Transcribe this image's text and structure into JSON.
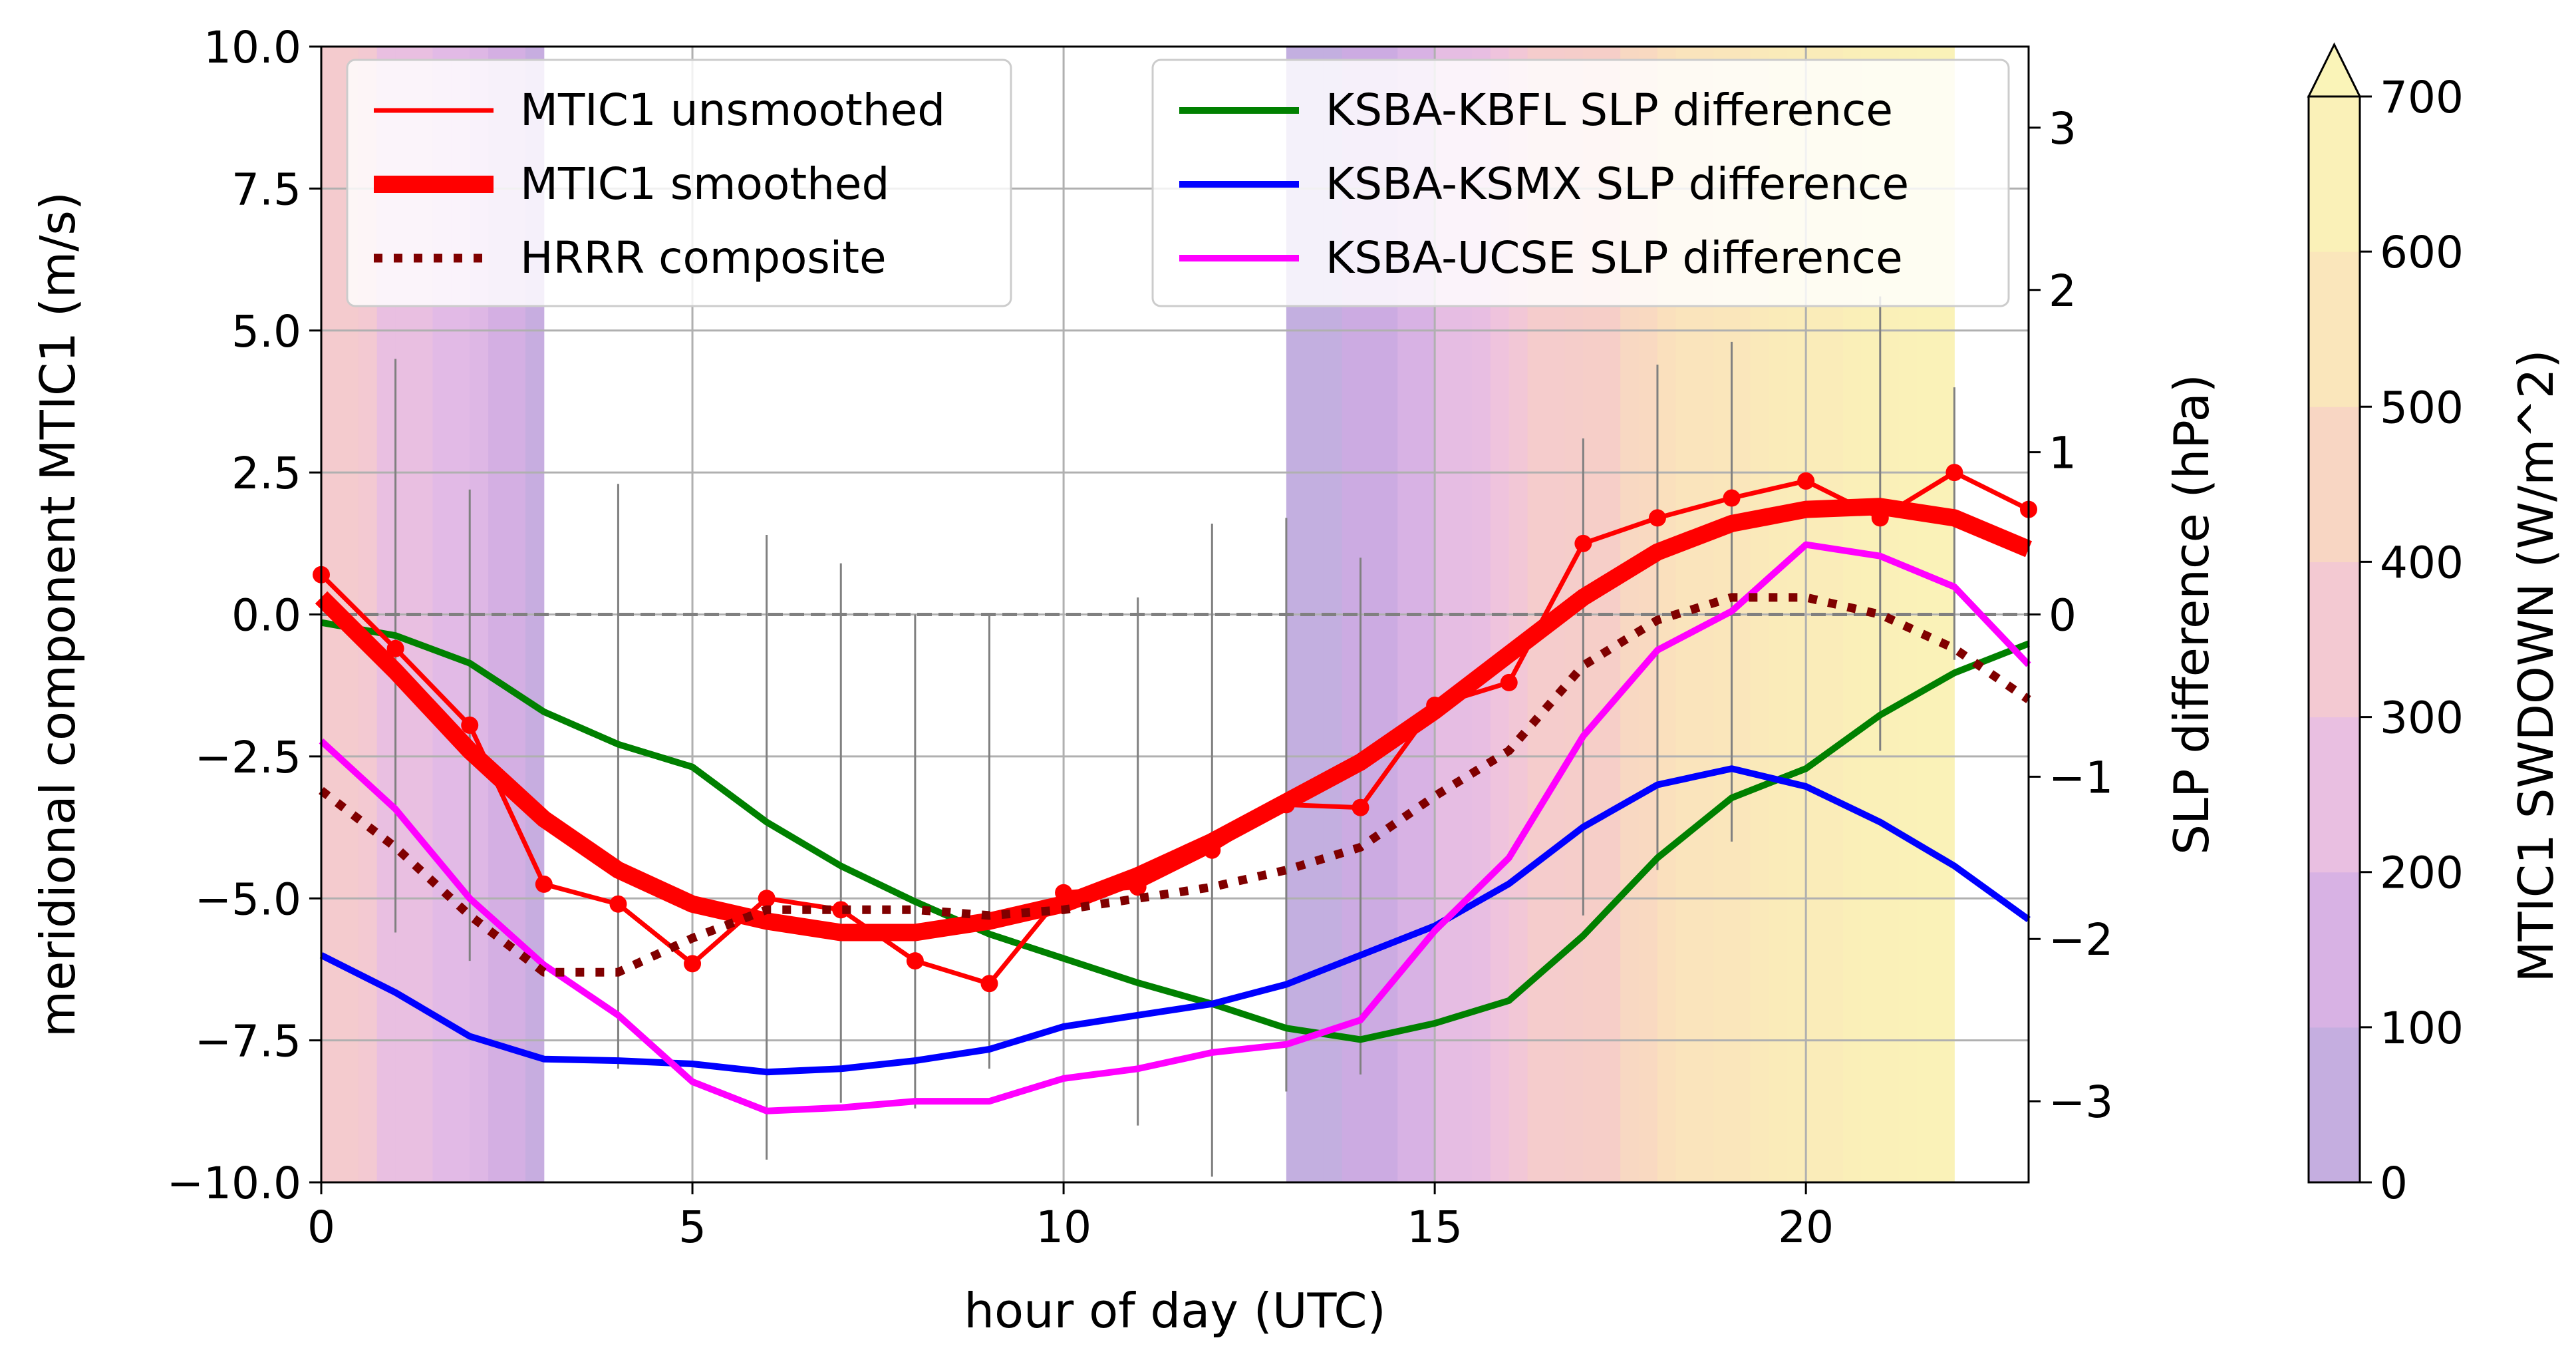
{
  "chart_data": {
    "type": "line",
    "xlabel": "hour of day (UTC)",
    "ylabel_left": "meridional component MTIC1 (m/s)",
    "ylabel_right": "SLP difference (hPa)",
    "colorbar_label": "MTIC1 SWDOWN (W/m^2)",
    "xlim": [
      0,
      23
    ],
    "ylim_left": [
      -10,
      10
    ],
    "ylim_right": [
      -3.5,
      3.5
    ],
    "x_ticks": [
      0,
      5,
      10,
      15,
      20
    ],
    "y_ticks_left": [
      10.0,
      7.5,
      5.0,
      2.5,
      0.0,
      -2.5,
      -5.0,
      -7.5,
      -10.0
    ],
    "y_ticks_right": [
      3,
      2,
      1,
      0,
      -1,
      -2,
      -3
    ],
    "colorbar_ticks": [
      0,
      100,
      200,
      300,
      400,
      500,
      600,
      700
    ],
    "x_tick_labels": [
      "0",
      "5",
      "10",
      "15",
      "20"
    ],
    "y_tick_labels_left": [
      "10.0",
      "7.5",
      "5.0",
      "2.5",
      "0.0",
      "−2.5",
      "−5.0",
      "−7.5",
      "−10.0"
    ],
    "y_tick_labels_right": [
      "3",
      "2",
      "1",
      "0",
      "−1",
      "−2",
      "−3"
    ],
    "colorbar_tick_labels": [
      "0",
      "100",
      "200",
      "300",
      "400",
      "500",
      "600",
      "700"
    ],
    "colorbar_extend": "max",
    "zero_line": 0,
    "background_swdown": {
      "start_hour": 0,
      "step_hours": 0.25,
      "values": [
        370,
        370,
        350,
        250,
        250,
        250,
        200,
        200,
        180,
        130,
        130,
        60,
        null,
        null,
        null,
        null,
        null,
        null,
        null,
        null,
        null,
        null,
        null,
        null,
        null,
        null,
        null,
        null,
        null,
        null,
        null,
        null,
        null,
        null,
        null,
        null,
        null,
        null,
        null,
        null,
        null,
        null,
        null,
        null,
        null,
        null,
        null,
        null,
        null,
        null,
        null,
        null,
        40,
        40,
        40,
        90,
        90,
        90,
        150,
        150,
        230,
        230,
        240,
        290,
        330,
        380,
        380,
        390,
        400,
        400,
        460,
        470,
        510,
        540,
        540,
        550,
        550,
        570,
        580,
        590,
        590,
        590,
        610,
        640,
        640,
        650,
        660,
        670
      ]
    },
    "series": [
      {
        "name": "MTIC1 unsmoothed",
        "axis": "left",
        "color": "#ff0000",
        "style": "solid-markers",
        "x": [
          0,
          1,
          2,
          3,
          4,
          5,
          6,
          7,
          8,
          9,
          10,
          11,
          12,
          13,
          14,
          15,
          16,
          17,
          18,
          19,
          20,
          21,
          22,
          23
        ],
        "y": [
          0.7,
          -0.6,
          -1.95,
          -4.75,
          -5.1,
          -6.15,
          -5.0,
          -5.2,
          -6.1,
          -6.5,
          -4.9,
          -4.8,
          -4.15,
          -3.35,
          -3.4,
          -1.6,
          -1.2,
          1.25,
          1.7,
          2.05,
          2.35,
          1.7,
          2.5,
          1.85
        ],
        "error_bars": [
          [
            0.7,
            0.7
          ],
          [
            -0.6,
            -0.6
          ],
          [
            -6.1,
            2.2
          ],
          [
            -4.75,
            -4.75
          ],
          [
            -8.0,
            2.3
          ],
          [
            -6.15,
            -6.15
          ],
          [
            -9.6,
            1.4
          ],
          [
            -8.6,
            0.9
          ],
          [
            -8.7,
            0.0
          ],
          [
            -8.0,
            0.0
          ],
          [
            -4.9,
            -4.9
          ],
          [
            -9.0,
            0.3
          ],
          [
            -9.9,
            1.6
          ],
          [
            -8.4,
            1.7
          ],
          [
            -8.1,
            1.0
          ],
          [
            -1.6,
            -1.6
          ],
          [
            -1.2,
            -1.2
          ],
          [
            -5.3,
            3.1
          ],
          [
            -4.5,
            4.4
          ],
          [
            -4.0,
            4.8
          ],
          [
            2.35,
            2.35
          ],
          [
            -2.4,
            5.6
          ],
          [
            -0.8,
            4.0
          ],
          [
            1.85,
            1.85
          ]
        ],
        "error_bar_extra": [
          {
            "x": 1.0,
            "range": [
              -5.6,
              4.5
            ]
          }
        ]
      },
      {
        "name": "MTIC1 smoothed",
        "axis": "left",
        "color": "#ff0000",
        "style": "thick",
        "x": [
          0,
          1,
          2,
          3,
          4,
          5,
          6,
          7,
          8,
          9,
          10,
          11,
          12,
          13,
          14,
          15,
          16,
          17,
          18,
          19,
          20,
          21,
          22,
          23
        ],
        "y": [
          0.3,
          -1.0,
          -2.4,
          -3.6,
          -4.5,
          -5.1,
          -5.4,
          -5.6,
          -5.6,
          -5.4,
          -5.1,
          -4.6,
          -4.0,
          -3.3,
          -2.6,
          -1.7,
          -0.7,
          0.3,
          1.1,
          1.6,
          1.85,
          1.9,
          1.7,
          1.15
        ]
      },
      {
        "name": "HRRR composite",
        "axis": "left",
        "color": "#800000",
        "style": "dotted",
        "x": [
          0,
          1,
          2,
          3,
          4,
          5,
          6,
          7,
          8,
          9,
          10,
          11,
          12,
          13,
          14,
          15,
          16,
          17,
          18,
          19,
          20,
          21,
          22,
          23
        ],
        "y": [
          -3.1,
          -4.1,
          -5.3,
          -6.3,
          -6.3,
          -5.7,
          -5.2,
          -5.2,
          -5.2,
          -5.3,
          -5.2,
          -5.0,
          -4.8,
          -4.5,
          -4.1,
          -3.2,
          -2.4,
          -0.9,
          -0.1,
          0.3,
          0.3,
          0.0,
          -0.6,
          -1.5
        ]
      },
      {
        "name": "KSBA-KBFL SLP difference",
        "axis": "right",
        "color": "#008000",
        "style": "solid",
        "x": [
          0,
          1,
          2,
          3,
          4,
          5,
          6,
          7,
          8,
          9,
          10,
          11,
          12,
          13,
          14,
          15,
          16,
          17,
          18,
          19,
          20,
          21,
          22,
          23
        ],
        "y": [
          -0.05,
          -0.13,
          -0.3,
          -0.6,
          -0.8,
          -0.94,
          -1.28,
          -1.55,
          -1.77,
          -1.97,
          -2.12,
          -2.27,
          -2.4,
          -2.55,
          -2.62,
          -2.52,
          -2.38,
          -1.98,
          -1.5,
          -1.13,
          -0.95,
          -0.62,
          -0.36,
          -0.18
        ]
      },
      {
        "name": "KSBA-KSMX SLP difference",
        "axis": "right",
        "color": "#0000ff",
        "style": "solid",
        "x": [
          0,
          1,
          2,
          3,
          4,
          5,
          6,
          7,
          8,
          9,
          10,
          11,
          12,
          13,
          14,
          15,
          16,
          17,
          18,
          19,
          20,
          21,
          22,
          23
        ],
        "y": [
          -2.1,
          -2.33,
          -2.6,
          -2.74,
          -2.75,
          -2.77,
          -2.82,
          -2.8,
          -2.75,
          -2.68,
          -2.54,
          -2.47,
          -2.4,
          -2.28,
          -2.1,
          -1.92,
          -1.66,
          -1.31,
          -1.05,
          -0.95,
          -1.06,
          -1.28,
          -1.55,
          -1.88
        ]
      },
      {
        "name": "KSBA-UCSE SLP difference",
        "axis": "right",
        "color": "#ff00ff",
        "style": "solid",
        "x": [
          0,
          1,
          2,
          3,
          4,
          5,
          6,
          7,
          8,
          9,
          10,
          11,
          12,
          13,
          14,
          15,
          16,
          17,
          18,
          19,
          20,
          21,
          22,
          23
        ],
        "y": [
          -0.78,
          -1.2,
          -1.75,
          -2.16,
          -2.47,
          -2.88,
          -3.06,
          -3.04,
          -3.0,
          -3.0,
          -2.86,
          -2.8,
          -2.7,
          -2.65,
          -2.5,
          -1.95,
          -1.5,
          -0.75,
          -0.22,
          0.02,
          0.43,
          0.36,
          0.17,
          -0.31
        ]
      }
    ],
    "legend_left": [
      "MTIC1 unsmoothed",
      "MTIC1 smoothed",
      "HRRR composite"
    ],
    "legend_right": [
      "KSBA-KBFL SLP difference",
      "KSBA-KSMX SLP difference",
      "KSBA-UCSE SLP difference"
    ],
    "legend_placement": [
      "top-left",
      "top-right"
    ],
    "grid": true
  }
}
